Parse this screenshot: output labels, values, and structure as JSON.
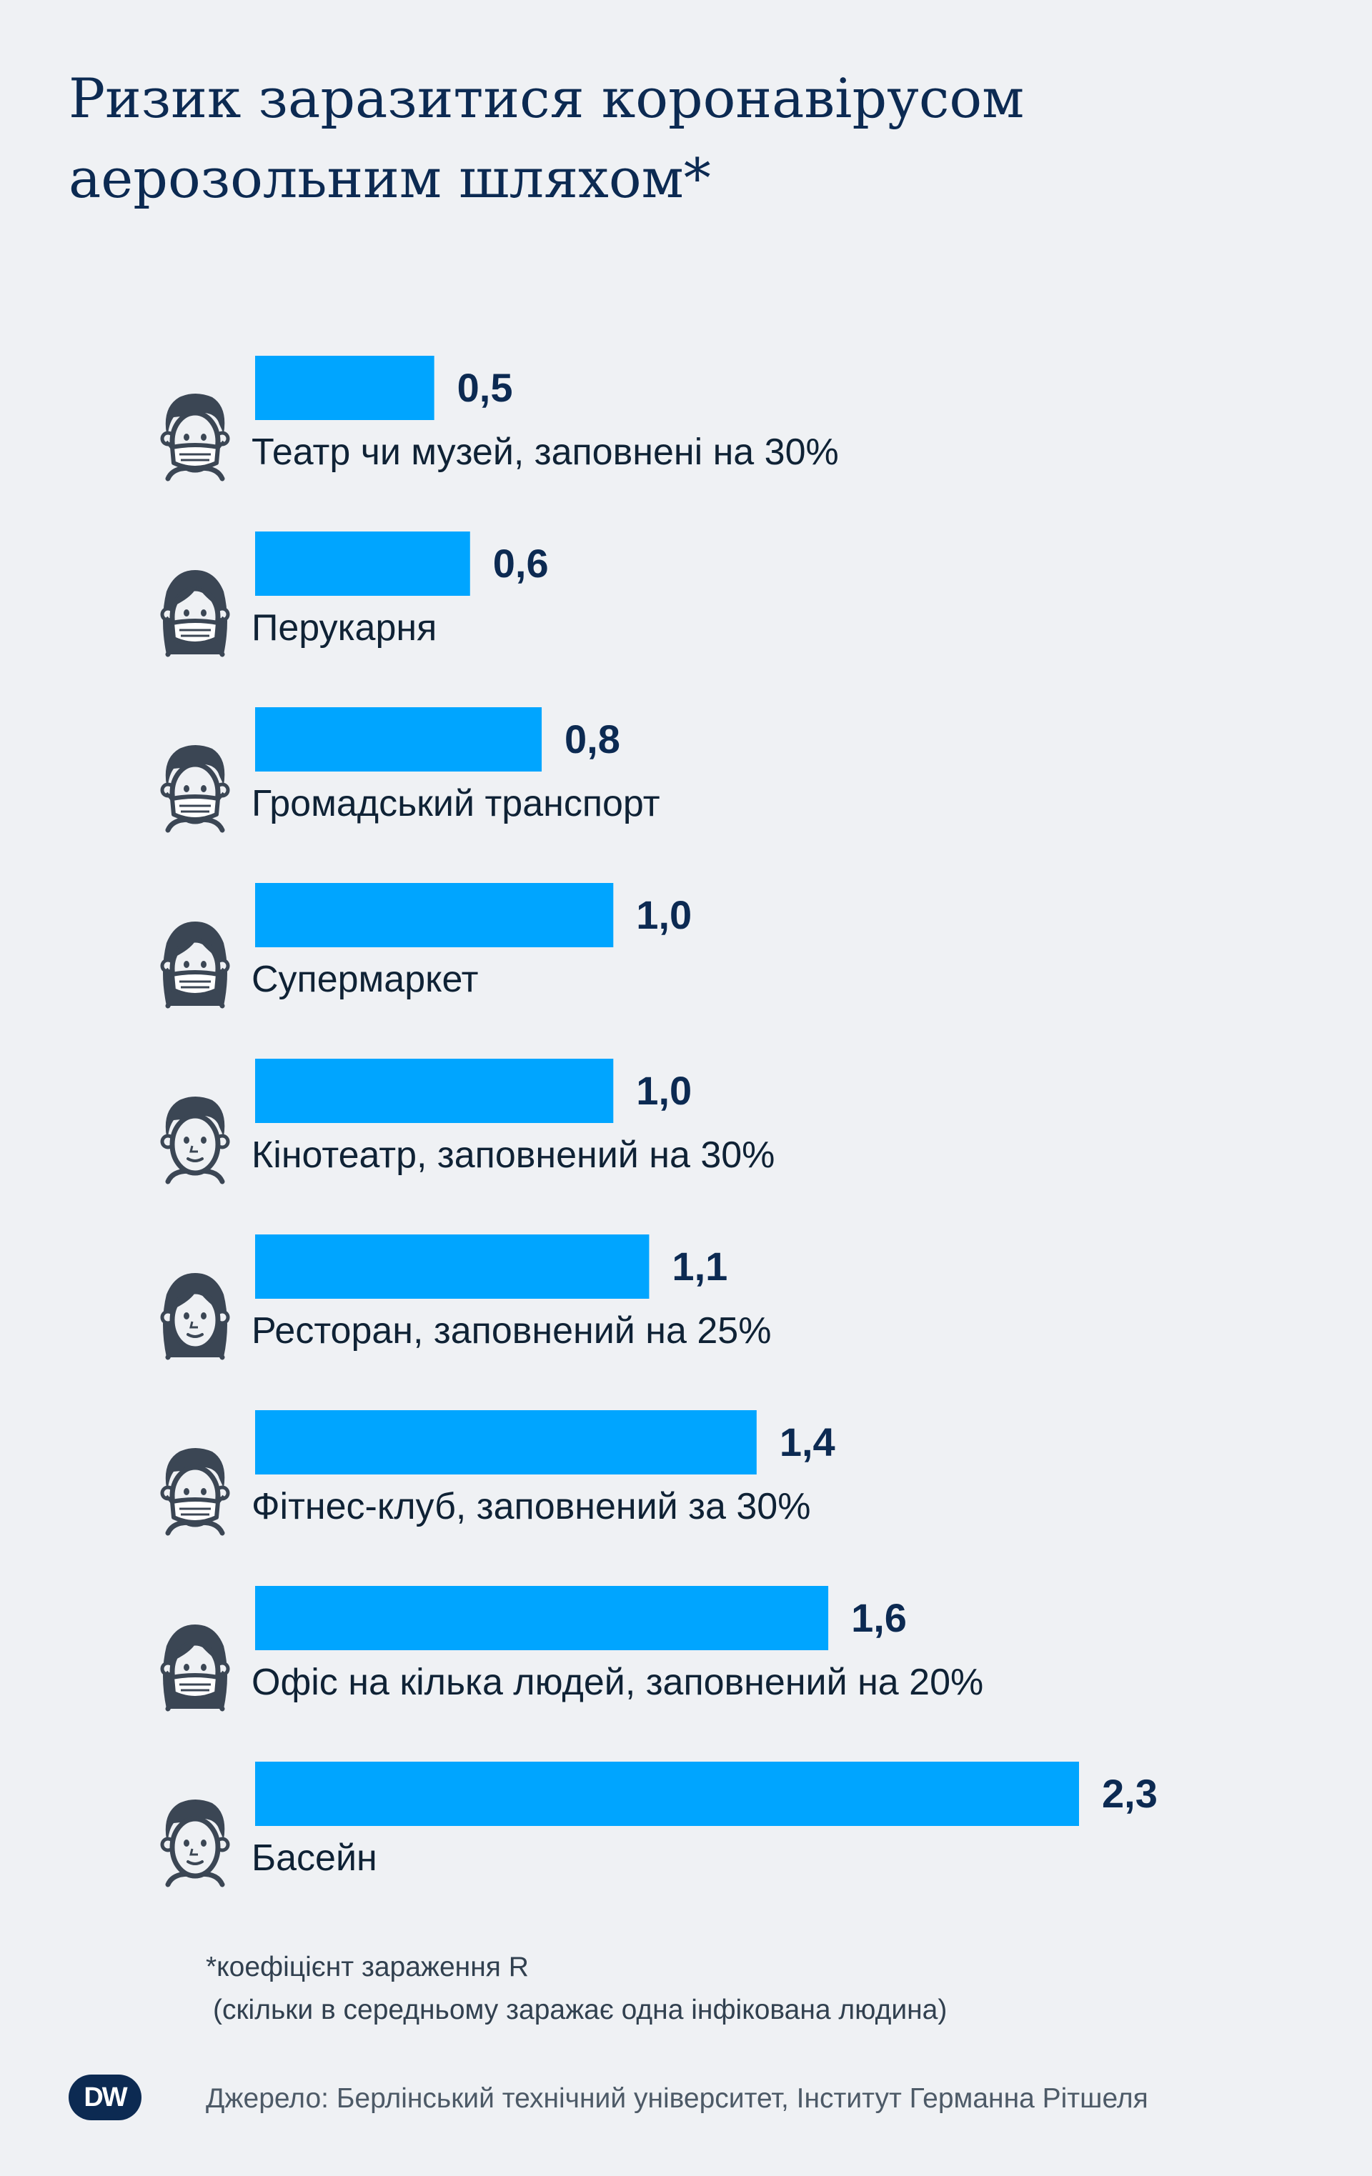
{
  "chart_data": {
    "type": "bar",
    "orientation": "horizontal",
    "title": "Ризик заразитися коронавірусом аерозольним шляхом*",
    "categories": [
      "Театр чи музей, заповнені на 30%",
      "Перукарня",
      "Громадський транспорт",
      "Супермаркет",
      "Кінотеатр, заповнений на 30%",
      "Ресторан, заповнений на 25%",
      "Фітнес-клуб, заповнений за 30%",
      "Офіс на кілька людей, заповнений на 20%",
      "Басейн"
    ],
    "values": [
      0.5,
      0.6,
      0.8,
      1.0,
      1.0,
      1.1,
      1.4,
      1.6,
      2.3
    ],
    "value_labels": [
      "0,5",
      "0,6",
      "0,8",
      "1,0",
      "1,0",
      "1,1",
      "1,4",
      "1,6",
      "2,3"
    ],
    "icons": [
      "masked-man-icon",
      "masked-woman-icon",
      "masked-man-icon",
      "masked-woman-icon",
      "man-icon",
      "woman-icon",
      "masked-man-icon",
      "masked-woman-icon",
      "man-icon"
    ],
    "xlim": [
      0,
      2.3
    ],
    "grid": false,
    "bar_color": "#00a5ff"
  },
  "footnote": {
    "line1": "*коефіцієнт зараження R",
    "line2": "(скільки в середньому заражає одна інфікована людина)"
  },
  "source": "Джерело: Берлінський технічний університет, Інститут Германна Рітшеля",
  "logo": "DW",
  "colors": {
    "background": "#eff1f4",
    "title": "#0c2a52",
    "bar": "#00a5ff",
    "icon": "#3b4654"
  }
}
